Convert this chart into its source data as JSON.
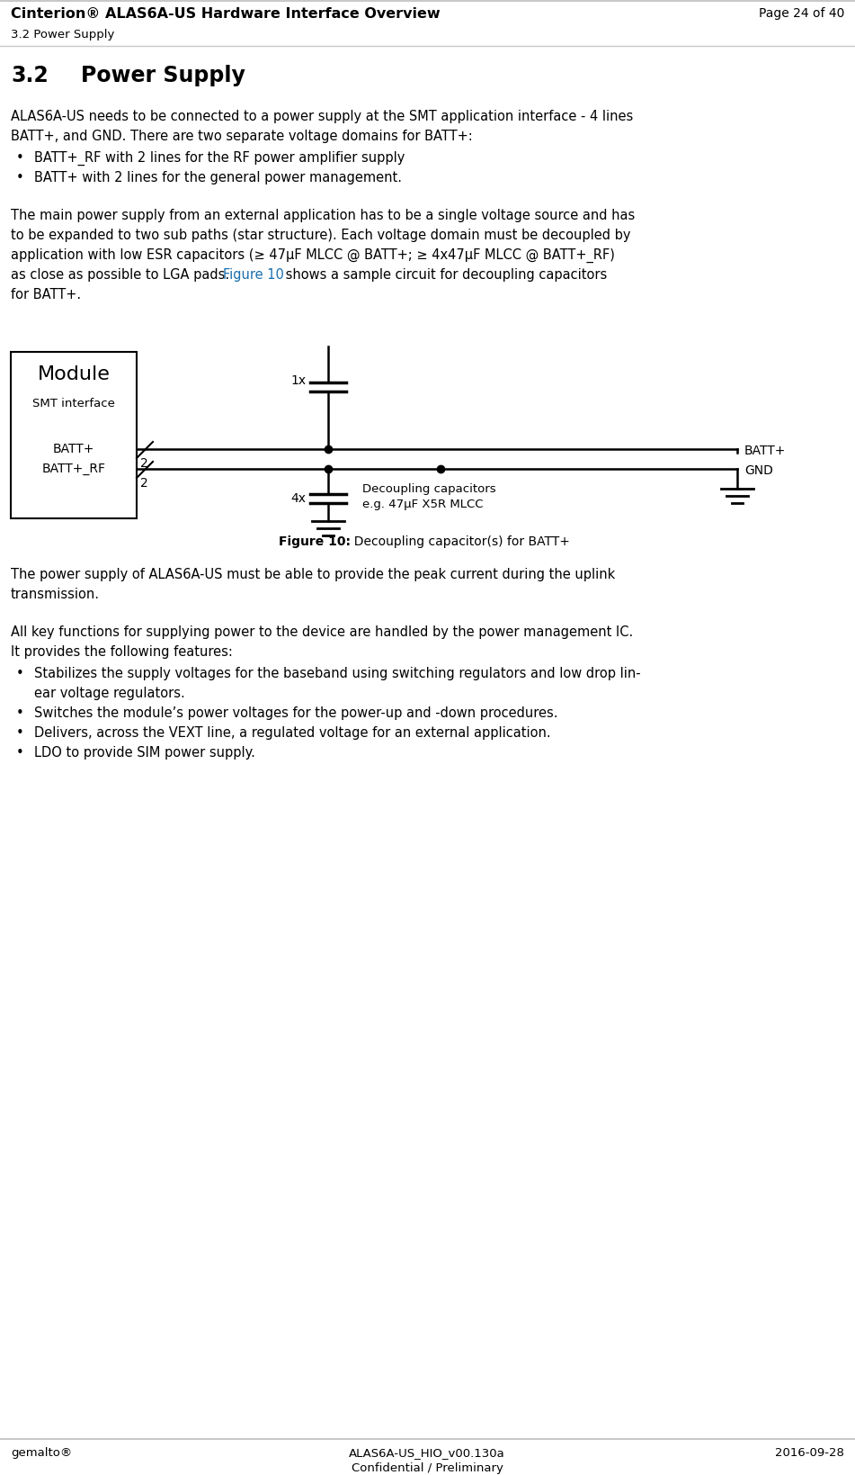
{
  "header_title": "Cinterion® ALAS6A-US Hardware Interface Overview",
  "header_section": "3.2 Power Supply",
  "header_page": "Page 24 of 40",
  "section_number": "3.2",
  "section_title": "Power Supply",
  "bullet1": "BATT+_RF with 2 lines for the RF power amplifier supply",
  "bullet2": "BATT+ with 2 lines for the general power management.",
  "figure_caption_bold": "Figure 10:",
  "figure_caption_normal": "  Decoupling capacitor(s) for BATT+",
  "para3_line1": "The power supply of ALAS6A-US must be able to provide the peak current during the uplink",
  "para3_line2": "transmission.",
  "para4_line1": "All key functions for supplying power to the device are handled by the power management IC.",
  "para4_line2": "It provides the following features:",
  "bullet3": "Stabilizes the supply voltages for the baseband using switching regulators and low drop lin-",
  "bullet3b": "ear voltage regulators.",
  "bullet4": "Switches the module’s power voltages for the power-up and -down procedures.",
  "bullet5": "Delivers, across the VEXT line, a regulated voltage for an external application.",
  "bullet6": "LDO to provide SIM power supply.",
  "footer_left": "gemalto®",
  "footer_center1": "ALAS6A-US_HIO_v00.130a",
  "footer_center2": "Confidential / Preliminary",
  "footer_right": "2016-09-28",
  "bg_color": "#ffffff",
  "text_color": "#000000",
  "link_color": "#1a6faf",
  "gray_line": "#c8c8c8"
}
